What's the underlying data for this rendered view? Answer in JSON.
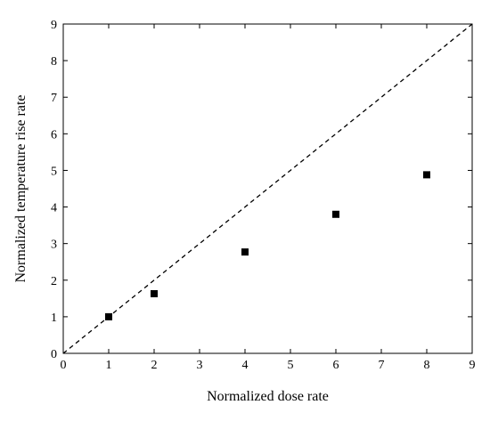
{
  "chart_data": {
    "type": "scatter",
    "title": "",
    "xlabel": "Normalized dose rate",
    "ylabel": "Normalized temperature rise rate",
    "xlim": [
      0,
      9
    ],
    "ylim": [
      0,
      9
    ],
    "x_ticks": [
      0,
      1,
      2,
      3,
      4,
      5,
      6,
      7,
      8,
      9
    ],
    "y_ticks": [
      0,
      1,
      2,
      3,
      4,
      5,
      6,
      7,
      8,
      9
    ],
    "x_tick_labels": [
      "0",
      "1",
      "2",
      "3",
      "4",
      "5",
      "6",
      "7",
      "8",
      "9"
    ],
    "y_tick_labels": [
      "0",
      "1",
      "2",
      "3",
      "4",
      "5",
      "6",
      "7",
      "8",
      "9"
    ],
    "grid": false,
    "series": [
      {
        "marker": "square",
        "color": "#000000",
        "points": [
          {
            "x": 1,
            "y": 1.0
          },
          {
            "x": 2,
            "y": 1.63
          },
          {
            "x": 4,
            "y": 2.77
          },
          {
            "x": 6,
            "y": 3.8
          },
          {
            "x": 8,
            "y": 4.88
          }
        ]
      }
    ],
    "reference_line": {
      "style": "dashed",
      "color": "#000000",
      "from": {
        "x": 0,
        "y": 0
      },
      "to": {
        "x": 9,
        "y": 9
      }
    }
  }
}
